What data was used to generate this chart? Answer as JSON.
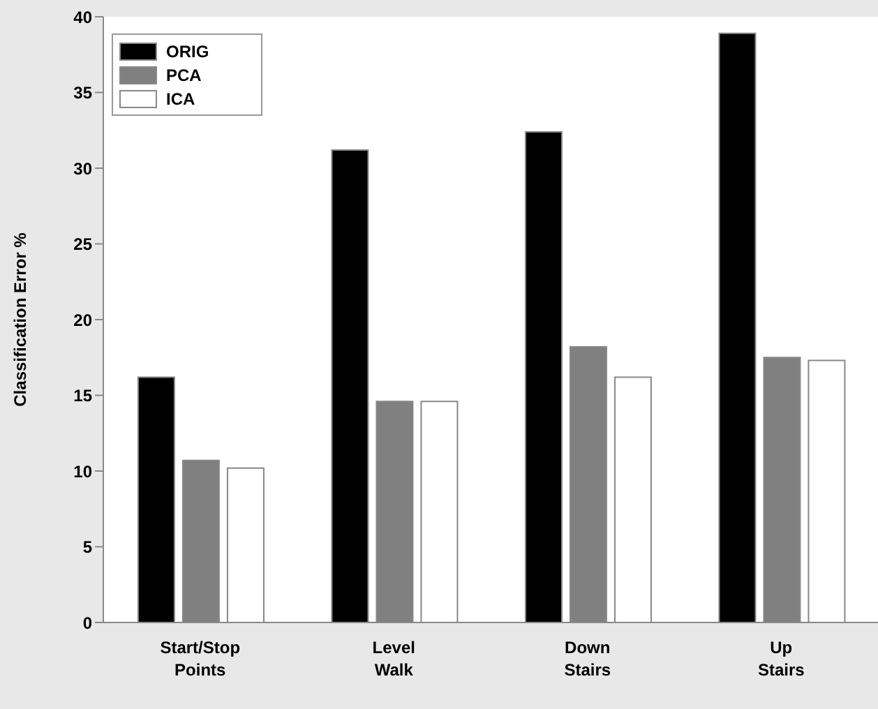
{
  "chart_data": {
    "type": "bar",
    "ylabel": "Classification Error %",
    "categories": [
      "Start/Stop\nPoints",
      "Level\nWalk",
      "Down\nStairs",
      "Up\nStairs"
    ],
    "series": [
      {
        "name": "ORIG",
        "color": "#000000",
        "values": [
          16.2,
          31.2,
          32.4,
          38.9
        ]
      },
      {
        "name": "PCA",
        "color": "#808080",
        "values": [
          10.7,
          14.6,
          18.2,
          17.5
        ]
      },
      {
        "name": "ICA",
        "color": "#ffffff",
        "values": [
          10.2,
          14.6,
          16.2,
          17.3
        ]
      }
    ],
    "ylim": [
      0,
      40
    ],
    "yticks": [
      0,
      5,
      10,
      15,
      20,
      25,
      30,
      35,
      40
    ],
    "grid": false,
    "legend": "top left"
  }
}
